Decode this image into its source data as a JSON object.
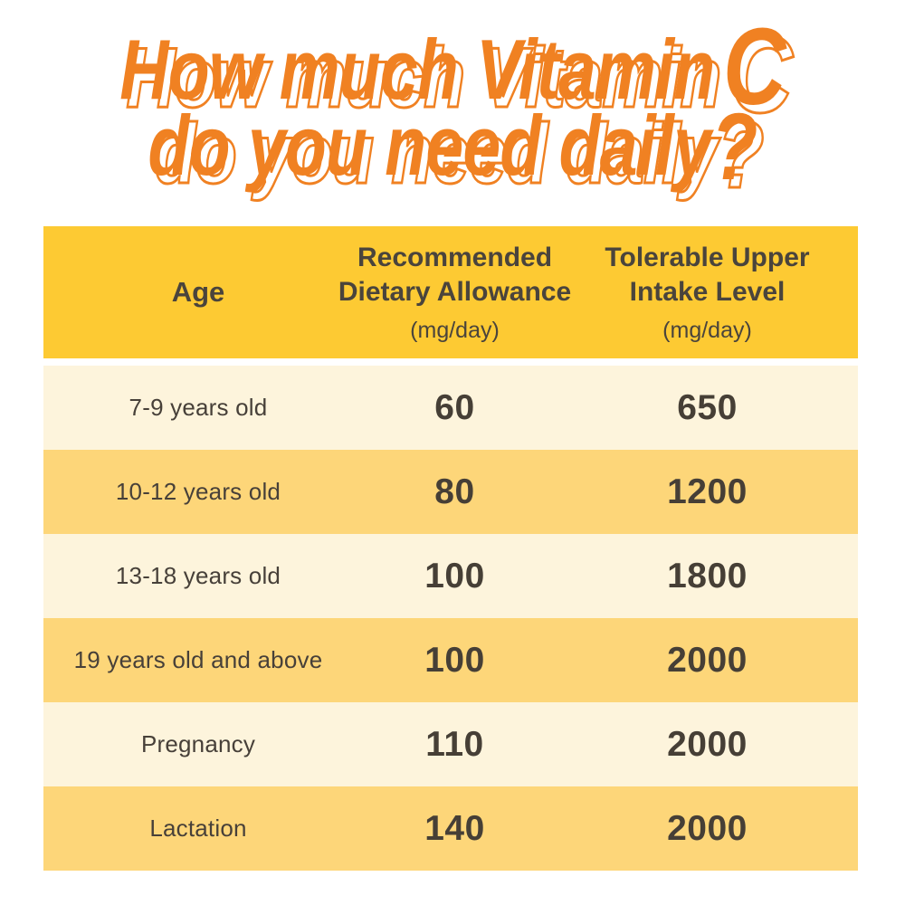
{
  "title": {
    "line1_main": "How much Vitamin",
    "line1_accent": "C",
    "line2_main": "do you need daily",
    "line2_accent": "?",
    "accent_color": "#F08122"
  },
  "table": {
    "header": {
      "age_label": "Age",
      "col2_line1": "Recommended",
      "col2_line2": "Dietary Allowance",
      "col2_unit": "(mg/day)",
      "col3_line1": "Tolerable Upper",
      "col3_line2": "Intake Level",
      "col3_unit": "(mg/day)"
    },
    "rows": [
      {
        "age": "7-9 years old",
        "rda": "60",
        "ul": "650"
      },
      {
        "age": "10-12 years old",
        "rda": "80",
        "ul": "1200"
      },
      {
        "age": "13-18 years old",
        "rda": "100",
        "ul": "1800"
      },
      {
        "age": "19 years old and above",
        "rda": "100",
        "ul": "2000"
      },
      {
        "age": "Pregnancy",
        "rda": "110",
        "ul": "2000"
      },
      {
        "age": "Lactation",
        "rda": "140",
        "ul": "2000"
      }
    ],
    "colors": {
      "header_bg": "#FDCA33",
      "row_light": "#FDF4DC",
      "row_dark": "#FDD679",
      "text": "#463F36",
      "title_orange": "#F08122"
    }
  },
  "chart_data": {
    "type": "table",
    "title": "How much Vitamin C do you need daily?",
    "columns": [
      "Age",
      "Recommended Dietary Allowance (mg/day)",
      "Tolerable Upper Intake Level (mg/day)"
    ],
    "rows": [
      [
        "7-9 years old",
        60,
        650
      ],
      [
        "10-12 years old",
        80,
        1200
      ],
      [
        "13-18 years old",
        100,
        1800
      ],
      [
        "19 years old and above",
        100,
        2000
      ],
      [
        "Pregnancy",
        110,
        2000
      ],
      [
        "Lactation",
        140,
        2000
      ]
    ]
  }
}
